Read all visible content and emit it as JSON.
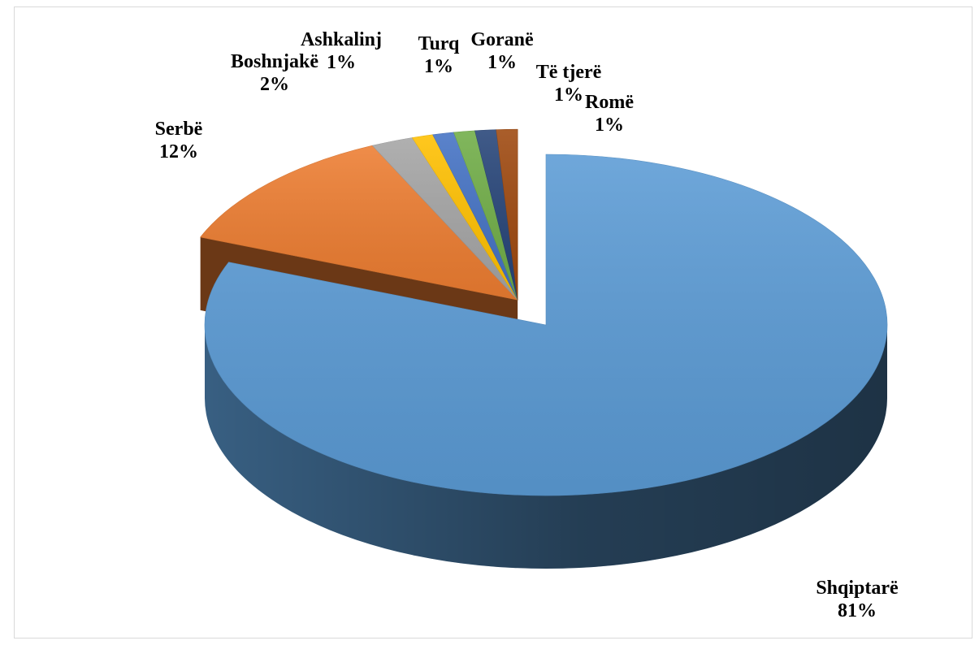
{
  "chart_data": {
    "type": "pie",
    "style": "3d-exploded",
    "slices": [
      {
        "label": "Shqiptarë",
        "percent_label": "81%",
        "value": 81,
        "color": "#5b9bd5"
      },
      {
        "label": "Serbë",
        "percent_label": "12%",
        "value": 12,
        "color": "#ed7d31"
      },
      {
        "label": "Boshnjakë",
        "percent_label": "2%",
        "value": 2,
        "color": "#a5a5a5"
      },
      {
        "label": "Ashkalinj",
        "percent_label": "1%",
        "value": 1,
        "color": "#ffc000"
      },
      {
        "label": "Turq",
        "percent_label": "1%",
        "value": 1,
        "color": "#4472c4"
      },
      {
        "label": "Goranë",
        "percent_label": "1%",
        "value": 1,
        "color": "#70ad47"
      },
      {
        "label": "Të tjerë",
        "percent_label": "1%",
        "value": 1,
        "color": "#264478"
      },
      {
        "label": "Romë",
        "percent_label": "1%",
        "value": 1,
        "color": "#9e480e"
      }
    ],
    "legend": "none",
    "data_labels": "category and percent"
  }
}
